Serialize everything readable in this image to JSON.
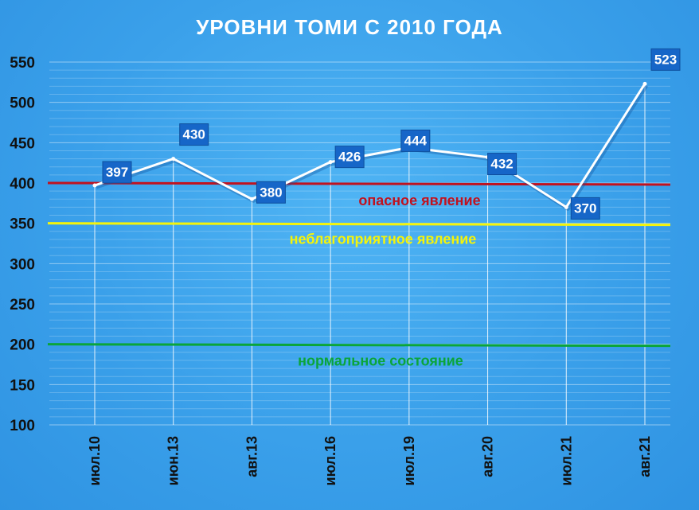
{
  "chart_data": {
    "type": "line",
    "title": "УРОВНИ ТОМИ С 2010 ГОДА",
    "categories": [
      "июл.10",
      "июн.13",
      "авг.13",
      "июл.16",
      "июл.19",
      "авг.20",
      "июл.21",
      "авг.21"
    ],
    "series": [
      {
        "values": [
          397,
          430,
          380,
          426,
          444,
          432,
          370,
          523
        ]
      }
    ],
    "ylim": [
      100,
      550
    ],
    "yticks": [
      550,
      500,
      450,
      400,
      350,
      300,
      250,
      200,
      150,
      100
    ],
    "grid": true,
    "reference_lines": [
      {
        "value": 400,
        "label": "опасное явление",
        "color": "#c0121f"
      },
      {
        "value": 350,
        "label": "неблагоприятное явление",
        "color": "#f4f40a"
      },
      {
        "value": 200,
        "label": "нормальное состояние",
        "color": "#0aa53a"
      }
    ],
    "colors": {
      "line": "#ffffff",
      "data_label_box": "#1666c8",
      "background": "#3aa0ea"
    }
  }
}
